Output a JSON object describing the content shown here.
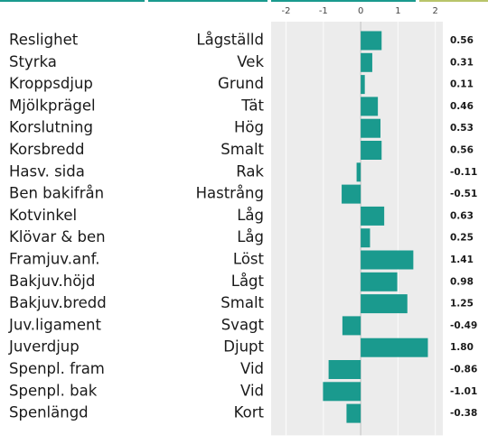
{
  "chart_data": {
    "type": "bar",
    "categories": [
      "Reslighet",
      "Styrka",
      "Kroppsdjup",
      "Mjölkprägel",
      "Korslutning",
      "Korsbredd",
      "Hasv. sida",
      "Ben bakifrån",
      "Kotvinkel",
      "Klövar & ben",
      "Framjuv.anf.",
      "Bakjuv.höjd",
      "Bakjuv.bredd",
      "Juv.ligament",
      "Juverdjup",
      "Spenpl. fram",
      "Spenpl. bak",
      "Spenlängd"
    ],
    "descriptors": [
      "Lågställd",
      "Vek",
      "Grund",
      "Tät",
      "Hög",
      "Smalt",
      "Rak",
      "Hastrång",
      "Låg",
      "Låg",
      "Löst",
      "Lågt",
      "Smalt",
      "Svagt",
      "Djupt",
      "Vid",
      "Vid",
      "Kort"
    ],
    "values": [
      0.56,
      0.31,
      0.11,
      0.46,
      0.53,
      0.56,
      -0.11,
      -0.51,
      0.63,
      0.25,
      1.41,
      0.98,
      1.25,
      -0.49,
      1.8,
      -0.86,
      -1.01,
      -0.38
    ],
    "value_labels": [
      "0.56",
      "0.31",
      "0.11",
      "0.46",
      "0.53",
      "0.56",
      "-0.11",
      "-0.51",
      "0.63",
      "0.25",
      "1.41",
      "0.98",
      "1.25",
      "-0.49",
      "1.80",
      "-0.86",
      "-1.01",
      "-0.38"
    ],
    "color": "#1a9a8e",
    "xlim": [
      -2.4,
      2.2
    ],
    "xticks": [
      -2,
      -1,
      0,
      1,
      2
    ],
    "grid": true
  }
}
